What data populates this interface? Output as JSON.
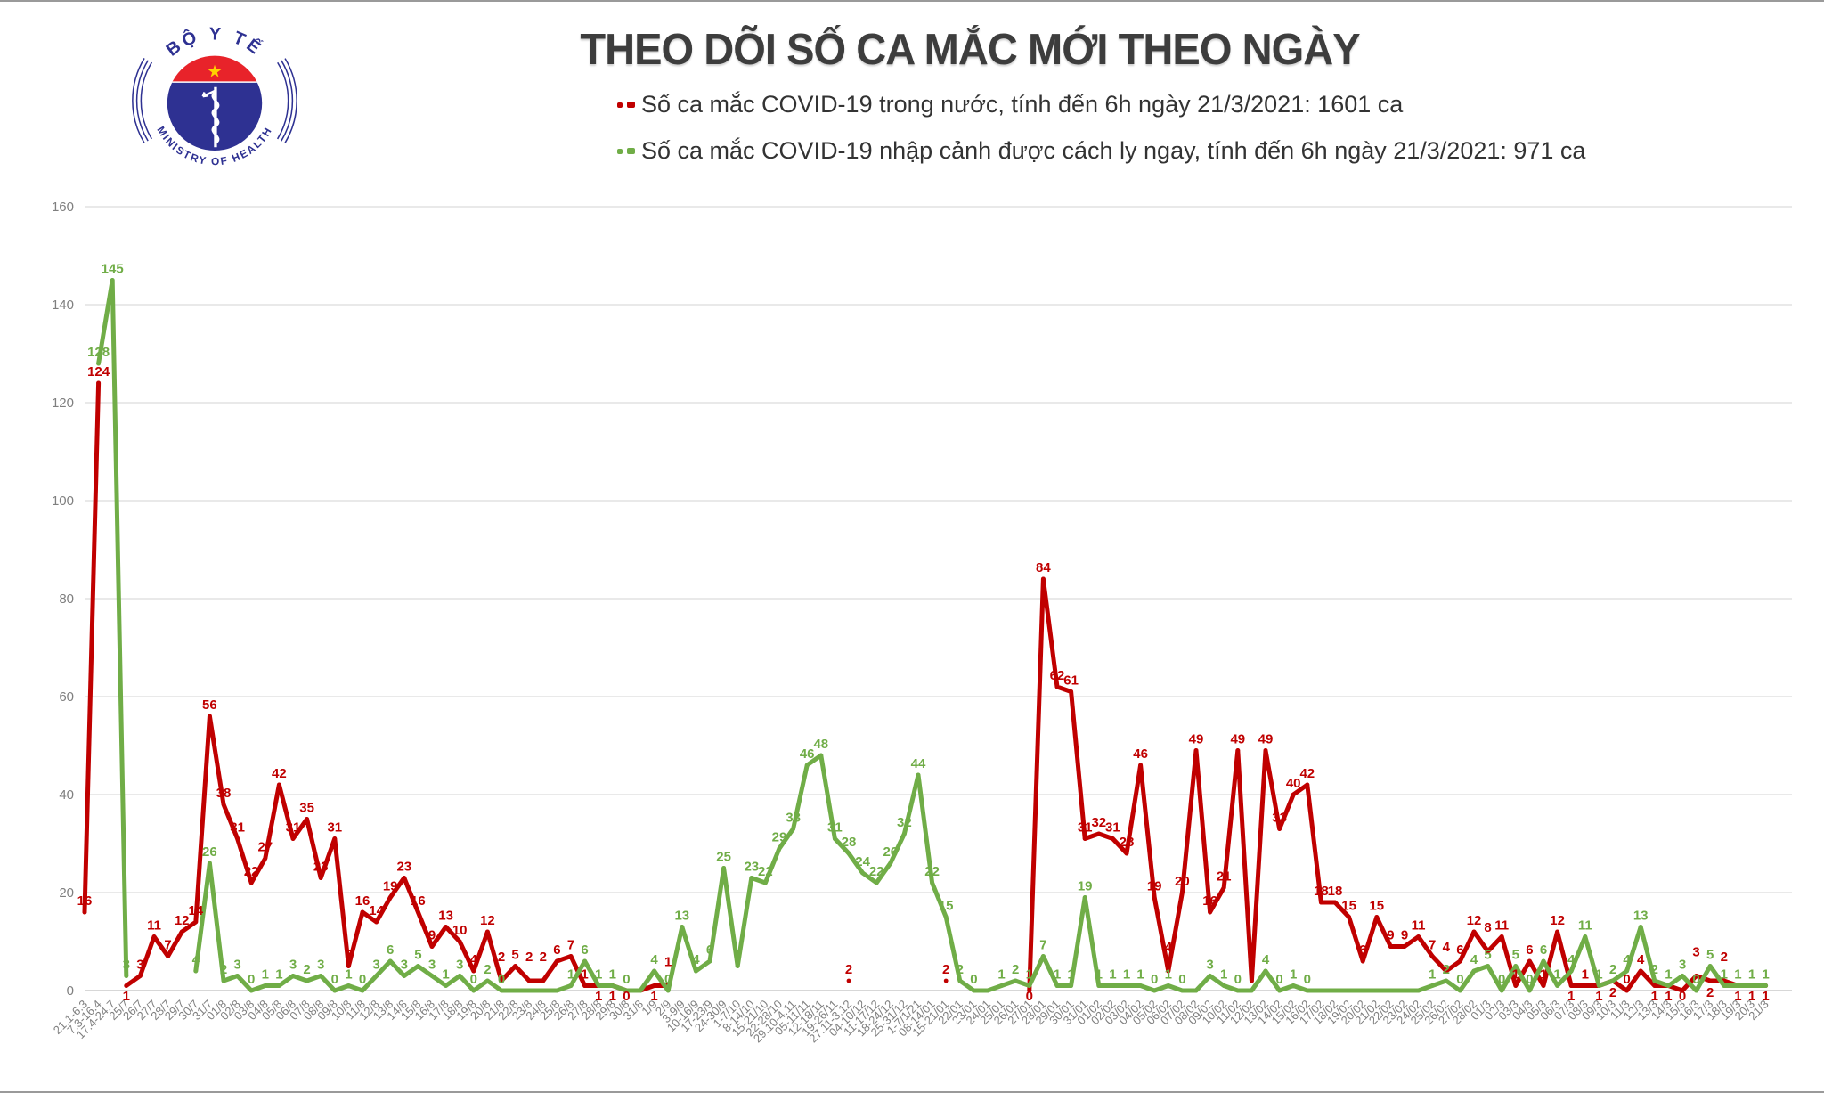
{
  "header": {
    "title": "THEO DÕI SỐ CA MẮC MỚI THEO NGÀY",
    "logo": {
      "top_text": "BỘ Y TẾ",
      "bottom_text": "MINISTRY OF HEALTH"
    },
    "legend": [
      {
        "label": "Số ca mắc COVID-19 trong nước, tính đến 6h ngày 21/3/2021: 1601 ca",
        "color": "#c00000"
      },
      {
        "label": "Số ca mắc COVID-19 nhập cảnh được cách ly ngay, tính đến 6h ngày 21/3/2021: 971 ca",
        "color": "#70ad47"
      }
    ]
  },
  "colors": {
    "domestic": "#c00000",
    "imported": "#70ad47",
    "grid": "#dcdcdc",
    "axis": "#bfbfbf",
    "tick_text": "#7f7f7f",
    "logo_blue": "#2e3192",
    "logo_red": "#e8232a",
    "logo_star": "#ffd200"
  },
  "chart_data": {
    "type": "line",
    "title": "THEO DÕI SỐ CA MẮC MỚI THEO NGÀY",
    "xlabel": "",
    "ylabel": "",
    "ylim": [
      0,
      160
    ],
    "yticks": [
      0,
      20,
      40,
      60,
      80,
      100,
      120,
      140,
      160
    ],
    "grid": true,
    "legend_position": "top",
    "categories": [
      "21.1-6.3",
      "7.3-16.4",
      "17.4-24.7",
      "25/7",
      "26/7",
      "27/7",
      "28/7",
      "29/7",
      "30/7",
      "31/7",
      "01/8",
      "02/8",
      "03/8",
      "04/8",
      "05/8",
      "06/8",
      "07/8",
      "08/8",
      "09/8",
      "10/8",
      "11/8",
      "12/8",
      "13/8",
      "14/8",
      "15/8",
      "16/8",
      "17/8",
      "18/8",
      "19/8",
      "20/8",
      "21/8",
      "22/8",
      "23/8",
      "24/8",
      "25/8",
      "26/8",
      "27/8",
      "28/8",
      "29/8",
      "30/8",
      "31/8",
      "1/9",
      "2/9",
      "3-9/9",
      "10-16/9",
      "17-23/9",
      "24-30/9",
      "1-7/10",
      "8-14/10",
      "15-21/10",
      "22-28/10",
      "29.10-4.11",
      "05-11/11",
      "12-18/11",
      "19-26/11",
      "27.11-3.12",
      "04-10/12",
      "11-17/12",
      "18-24/12",
      "25-31/12",
      "1-7/1/21",
      "08-14/01",
      "15-21/01",
      "22/01",
      "23/01",
      "24/01",
      "25/01",
      "26/01",
      "27/01",
      "28/01",
      "29/01",
      "30/01",
      "31/01",
      "01/02",
      "02/02",
      "03/02",
      "04/02",
      "05/02",
      "06/02",
      "07/02",
      "08/02",
      "09/02",
      "10/02",
      "11/02",
      "12/02",
      "13/02",
      "14/02",
      "15/02",
      "16/02",
      "17/02",
      "18/02",
      "19/02",
      "20/02",
      "21/02",
      "22/02",
      "23/02",
      "24/02",
      "25/02",
      "26/02",
      "27/02",
      "28/02",
      "01/3",
      "02/3",
      "03/3",
      "04/3",
      "05/3",
      "06/3",
      "07/3",
      "08/3",
      "09/3",
      "10/3",
      "11/3",
      "12/3",
      "13/3",
      "14/3",
      "15/3",
      "16/3",
      "17/3",
      "18/3",
      "19/3",
      "20/3",
      "21/3"
    ],
    "series": [
      {
        "name": "Số ca mắc COVID-19 trong nước",
        "color": "#c00000",
        "values": [
          16,
          124,
          null,
          1,
          3,
          11,
          7,
          12,
          14,
          56,
          38,
          31,
          22,
          27,
          42,
          31,
          35,
          23,
          31,
          5,
          16,
          14,
          19,
          23,
          16,
          9,
          13,
          10,
          4,
          12,
          2,
          5,
          2,
          2,
          6,
          7,
          1,
          1,
          1,
          0,
          0,
          1,
          1,
          null,
          null,
          null,
          null,
          null,
          null,
          null,
          null,
          null,
          null,
          null,
          null,
          2,
          null,
          null,
          null,
          null,
          null,
          null,
          2,
          null,
          null,
          null,
          null,
          null,
          0,
          84,
          62,
          61,
          31,
          32,
          31,
          28,
          46,
          19,
          4,
          20,
          49,
          16,
          21,
          49,
          2,
          49,
          33,
          40,
          42,
          18,
          18,
          15,
          6,
          15,
          9,
          9,
          11,
          7,
          4,
          6,
          12,
          8,
          11,
          1,
          6,
          1,
          12,
          1,
          1,
          1,
          2,
          0,
          4,
          1,
          1,
          0,
          3,
          2,
          2,
          1,
          1,
          1
        ]
      },
      {
        "name": "Số ca mắc COVID-19 nhập cảnh được cách ly ngay",
        "color": "#70ad47",
        "values": [
          null,
          128,
          145,
          3,
          null,
          null,
          null,
          null,
          4,
          26,
          2,
          3,
          0,
          1,
          1,
          3,
          2,
          3,
          0,
          1,
          0,
          3,
          6,
          3,
          5,
          3,
          1,
          3,
          0,
          2,
          0,
          0,
          0,
          0,
          0,
          1,
          6,
          1,
          1,
          0,
          0,
          4,
          0,
          13,
          4,
          6,
          25,
          5,
          23,
          22,
          29,
          33,
          46,
          48,
          31,
          28,
          24,
          22,
          26,
          32,
          44,
          22,
          15,
          2,
          0,
          0,
          1,
          2,
          1,
          7,
          1,
          1,
          19,
          1,
          1,
          1,
          1,
          0,
          1,
          0,
          0,
          3,
          1,
          0,
          0,
          4,
          0,
          1,
          0,
          0,
          0,
          0,
          0,
          0,
          0,
          0,
          0,
          1,
          2,
          0,
          4,
          5,
          0,
          5,
          0,
          6,
          1,
          4,
          11,
          1,
          2,
          4,
          13,
          2,
          1,
          3,
          0,
          5,
          1,
          1,
          1,
          1
        ]
      }
    ]
  }
}
